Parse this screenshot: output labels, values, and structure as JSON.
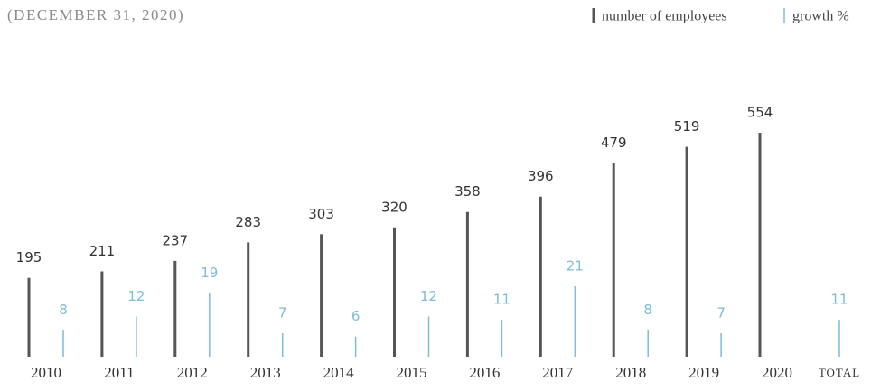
{
  "chart_data": {
    "type": "bar",
    "title": "(DECEMBER 31, 2020)",
    "categories": [
      "2010",
      "2011",
      "2012",
      "2013",
      "2014",
      "2015",
      "2016",
      "2017",
      "2018",
      "2019",
      "2020",
      "TOTAL"
    ],
    "series": [
      {
        "name": "number of employees",
        "color": "#555555",
        "values": [
          195,
          211,
          237,
          283,
          303,
          320,
          358,
          396,
          479,
          519,
          554,
          null
        ]
      },
      {
        "name": "growth %",
        "color": "#7fbcd6",
        "axis": "y2",
        "values": [
          8,
          12,
          19,
          7,
          6,
          12,
          11,
          21,
          8,
          7,
          null,
          11
        ]
      }
    ]
  }
}
